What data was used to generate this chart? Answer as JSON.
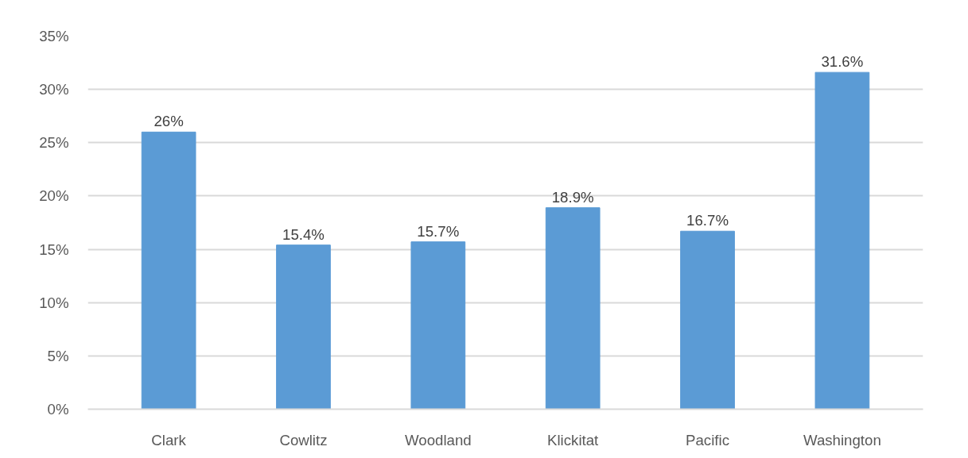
{
  "chart_data": {
    "type": "bar",
    "categories": [
      "Clark",
      "Cowlitz",
      "Woodland",
      "Klickitat",
      "Pacific",
      "Washington"
    ],
    "values": [
      26,
      15.4,
      15.7,
      18.9,
      16.7,
      31.6
    ],
    "value_labels": [
      "26%",
      "15.4%",
      "15.7%",
      "18.9%",
      "16.7%",
      "31.6%"
    ],
    "color": "#5b9bd5",
    "ylim": [
      0,
      35
    ],
    "yticks": [
      {
        "value": 0,
        "label": "0%"
      },
      {
        "value": 5,
        "label": "5%"
      },
      {
        "value": 10,
        "label": "10%"
      },
      {
        "value": 15,
        "label": "15%"
      },
      {
        "value": 20,
        "label": "20%"
      },
      {
        "value": 25,
        "label": "25%"
      },
      {
        "value": 30,
        "label": "30%"
      },
      {
        "value": 35,
        "label": "35%"
      }
    ],
    "grid": "y"
  }
}
